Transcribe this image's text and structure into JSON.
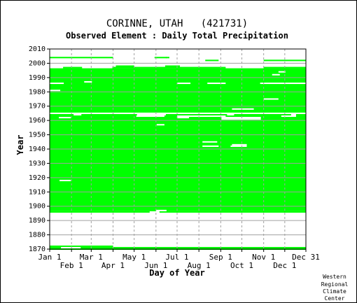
{
  "chart_data": {
    "type": "heatmap",
    "title": "CORINNE, UTAH   (421731)",
    "subtitle": "Observed Element : Daily Total Precipitation",
    "xlabel": "Day of Year",
    "ylabel": "Year",
    "xlim": [
      1,
      365
    ],
    "ylim": [
      1870,
      2010
    ],
    "x_ticks_top_row": [
      {
        "label": "Jan 1",
        "day": 1
      },
      {
        "label": "Mar 1",
        "day": 60
      },
      {
        "label": "May 1",
        "day": 121
      },
      {
        "label": "Jul 1",
        "day": 182
      },
      {
        "label": "Sep 1",
        "day": 244
      },
      {
        "label": "Nov 1",
        "day": 305
      },
      {
        "label": "Dec 31",
        "day": 365
      }
    ],
    "x_ticks_bottom_row": [
      {
        "label": "Feb 1",
        "day": 32
      },
      {
        "label": "Apr 1",
        "day": 91
      },
      {
        "label": "Jun 1",
        "day": 152
      },
      {
        "label": "Aug 1",
        "day": 213
      },
      {
        "label": "Oct 1",
        "day": 274
      },
      {
        "label": "Dec 1",
        "day": 335
      }
    ],
    "y_ticks": [
      1870,
      1880,
      1890,
      1900,
      1910,
      1920,
      1930,
      1940,
      1950,
      1960,
      1970,
      1980,
      1990,
      2000,
      2010
    ],
    "grid": true,
    "data_color": "#00ff00",
    "missing_color": "#ffffff",
    "observed_periods": [
      {
        "year_start": 1870,
        "year_end": 1870,
        "day_start": 1,
        "day_end": 365
      },
      {
        "year_start": 1871,
        "year_end": 1871,
        "day_start": 1,
        "day_end": 16
      },
      {
        "year_start": 1871,
        "year_end": 1871,
        "day_start": 45,
        "day_end": 365
      },
      {
        "year_start": 1872,
        "year_end": 1872,
        "day_start": 1,
        "day_end": 90
      },
      {
        "year_start": 1896,
        "year_end": 1896,
        "day_start": 1,
        "day_end": 142
      },
      {
        "year_start": 1896,
        "year_end": 1896,
        "day_start": 157,
        "day_end": 365
      },
      {
        "year_start": 1897,
        "year_end": 1964,
        "day_start": 1,
        "day_end": 365
      },
      {
        "year_start": 1966,
        "year_end": 1996,
        "day_start": 1,
        "day_end": 365
      },
      {
        "year_start": 1997,
        "year_end": 1997,
        "day_start": 20,
        "day_end": 46
      },
      {
        "year_start": 1997,
        "year_end": 1997,
        "day_start": 90,
        "day_end": 250
      },
      {
        "year_start": 1997,
        "year_end": 1997,
        "day_start": 305,
        "day_end": 365
      },
      {
        "year_start": 1998,
        "year_end": 1998,
        "day_start": 95,
        "day_end": 120
      },
      {
        "year_start": 1998,
        "year_end": 1998,
        "day_start": 165,
        "day_end": 185
      },
      {
        "year_start": 2002,
        "year_end": 2002,
        "day_start": 222,
        "day_end": 240
      },
      {
        "year_start": 2002,
        "year_end": 2002,
        "day_start": 305,
        "day_end": 365
      },
      {
        "year_start": 2004,
        "year_end": 2004,
        "day_start": 1,
        "day_end": 90
      },
      {
        "year_start": 2004,
        "year_end": 2004,
        "day_start": 150,
        "day_end": 166
      },
      {
        "year_start": 2004,
        "year_end": 2004,
        "day_start": 166,
        "day_end": 170
      }
    ],
    "missing_periods": [
      {
        "year_start": 1897,
        "year_end": 1897,
        "day_start": 152,
        "day_end": 166
      },
      {
        "year_start": 1918,
        "year_end": 1918,
        "day_start": 15,
        "day_end": 30
      },
      {
        "year_start": 1957,
        "year_end": 1957,
        "day_start": 153,
        "day_end": 163
      },
      {
        "year_start": 1961,
        "year_end": 1961,
        "day_start": 245,
        "day_end": 300
      },
      {
        "year_start": 1962,
        "year_end": 1962,
        "day_start": 14,
        "day_end": 30
      },
      {
        "year_start": 1962,
        "year_end": 1962,
        "day_start": 182,
        "day_end": 198
      },
      {
        "year_start": 1962,
        "year_end": 1962,
        "day_start": 245,
        "day_end": 300
      },
      {
        "year_start": 1963,
        "year_end": 1963,
        "day_start": 124,
        "day_end": 163
      },
      {
        "year_start": 1963,
        "year_end": 1963,
        "day_start": 182,
        "day_end": 250
      },
      {
        "year_start": 1963,
        "year_end": 1963,
        "day_start": 330,
        "day_end": 350
      },
      {
        "year_start": 1964,
        "year_end": 1964,
        "day_start": 35,
        "day_end": 45
      },
      {
        "year_start": 1964,
        "year_end": 1964,
        "day_start": 125,
        "day_end": 165
      },
      {
        "year_start": 1964,
        "year_end": 1964,
        "day_start": 253,
        "day_end": 262
      },
      {
        "year_start": 1964,
        "year_end": 1964,
        "day_start": 344,
        "day_end": 350
      },
      {
        "year_start": 1968,
        "year_end": 1968,
        "day_start": 260,
        "day_end": 290
      },
      {
        "year_start": 1975,
        "year_end": 1975,
        "day_start": 305,
        "day_end": 325
      },
      {
        "year_start": 1981,
        "year_end": 1981,
        "day_start": 1,
        "day_end": 15
      },
      {
        "year_start": 1986,
        "year_end": 1986,
        "day_start": 1,
        "day_end": 20
      },
      {
        "year_start": 1986,
        "year_end": 1986,
        "day_start": 182,
        "day_end": 200
      },
      {
        "year_start": 1986,
        "year_end": 1986,
        "day_start": 225,
        "day_end": 250
      },
      {
        "year_start": 1986,
        "year_end": 1986,
        "day_start": 300,
        "day_end": 365
      },
      {
        "year_start": 1987,
        "year_end": 1987,
        "day_start": 50,
        "day_end": 60
      },
      {
        "year_start": 1942,
        "year_end": 1942,
        "day_start": 218,
        "day_end": 240
      },
      {
        "year_start": 1942,
        "year_end": 1942,
        "day_start": 258,
        "day_end": 280
      },
      {
        "year_start": 1943,
        "year_end": 1943,
        "day_start": 260,
        "day_end": 280
      },
      {
        "year_start": 1945,
        "year_end": 1945,
        "day_start": 218,
        "day_end": 238
      },
      {
        "year_start": 1992,
        "year_end": 1992,
        "day_start": 317,
        "day_end": 327
      },
      {
        "year_start": 1994,
        "year_end": 1994,
        "day_start": 326,
        "day_end": 335
      }
    ]
  },
  "credit": [
    "Western",
    "Regional",
    "Climate",
    "Center"
  ]
}
